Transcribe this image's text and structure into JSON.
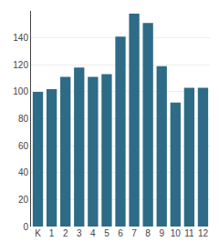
{
  "chart_data": {
    "type": "bar",
    "categories": [
      "K",
      "1",
      "2",
      "3",
      "4",
      "5",
      "6",
      "7",
      "8",
      "9",
      "10",
      "11",
      "12"
    ],
    "values": [
      100,
      102,
      111,
      118,
      111,
      113,
      141,
      158,
      151,
      119,
      92,
      103,
      103
    ],
    "color": "#2e6b87",
    "ylim": [
      0,
      160
    ],
    "yticks": [
      0,
      20,
      40,
      60,
      80,
      100,
      120,
      140
    ],
    "grid": true
  }
}
